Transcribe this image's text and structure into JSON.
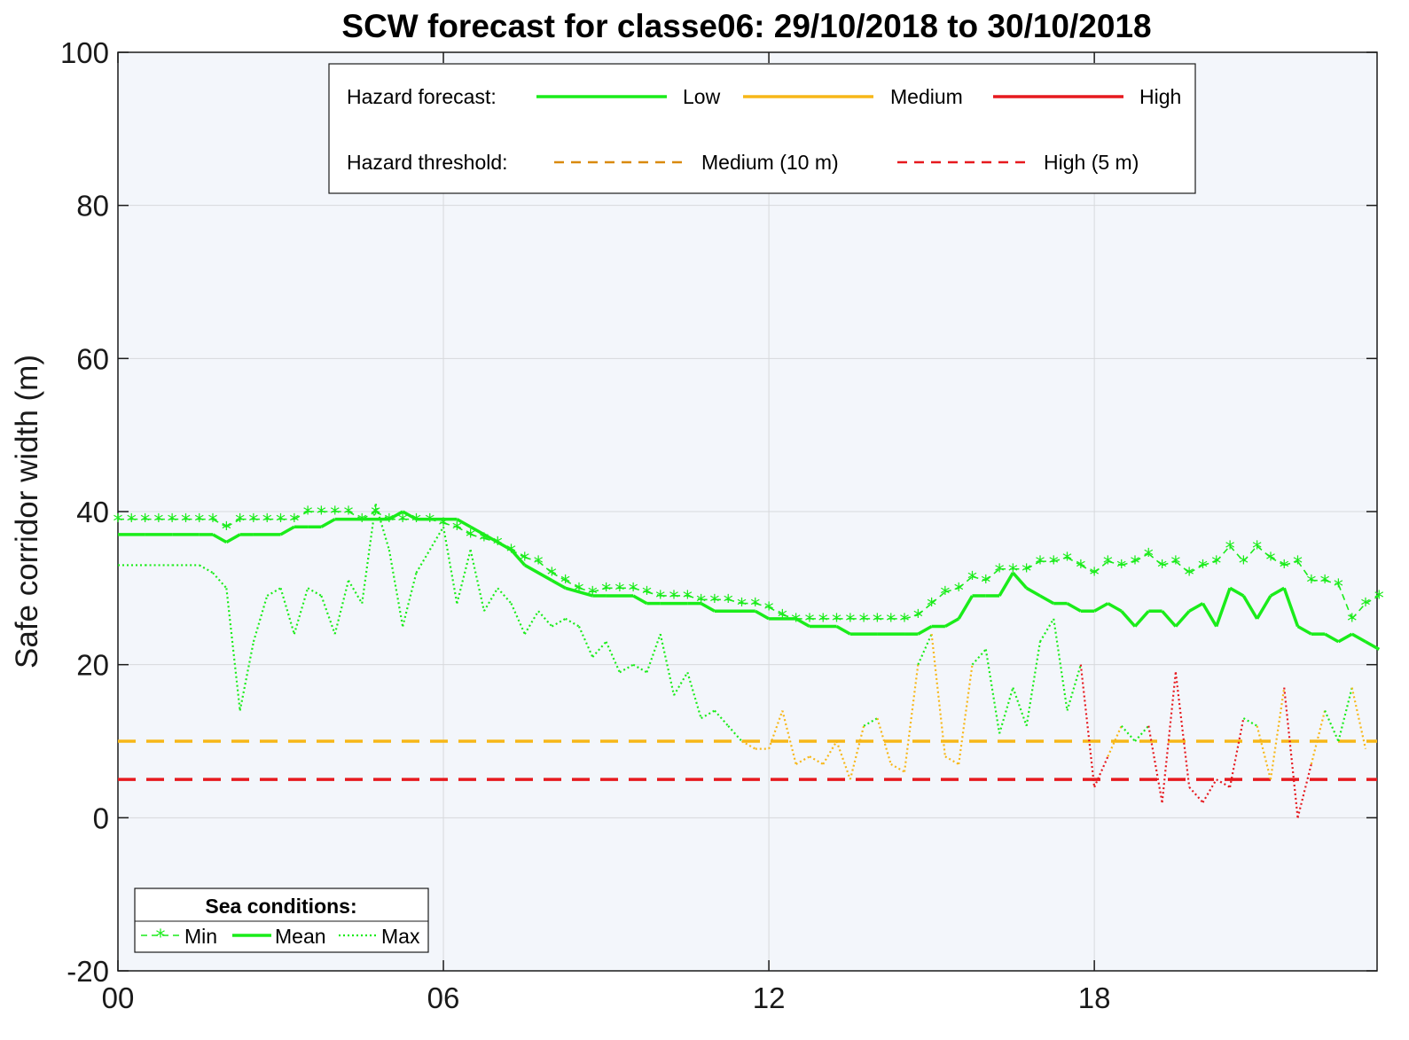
{
  "colors": {
    "background": "#f3f6fb",
    "grid": "#d7d9dc",
    "low": "#1aec1a",
    "medium": "#f7b718",
    "high": "#e6191e",
    "medium_threshold_legend": "#d98a0e"
  },
  "chart_data": {
    "type": "line",
    "title": "SCW forecast for classe06:  29/10/2018 to 30/10/2018",
    "ylabel": "Safe corridor width (m)",
    "xlabel": "",
    "xlim": [
      0,
      23
    ],
    "ylim": [
      -20,
      100
    ],
    "x_ticks": [
      {
        "value": 0,
        "label": "00"
      },
      {
        "value": 6,
        "label": "06"
      },
      {
        "value": 12,
        "label": "12"
      },
      {
        "value": 18,
        "label": "18"
      }
    ],
    "y_ticks": [
      {
        "value": -20,
        "label": "-20"
      },
      {
        "value": 0,
        "label": "0"
      },
      {
        "value": 20,
        "label": "20"
      },
      {
        "value": 40,
        "label": "40"
      },
      {
        "value": 60,
        "label": "60"
      },
      {
        "value": 80,
        "label": "80"
      },
      {
        "value": 100,
        "label": "100"
      }
    ],
    "grid": true,
    "thresholds": [
      {
        "name": "Medium (10 m)",
        "value": 10,
        "color": "#f7b718"
      },
      {
        "name": "High (5 m)",
        "value": 5,
        "color": "#e6191e"
      }
    ],
    "hazard_levels": {
      "medium_below": 10,
      "high_below": 5
    },
    "series": [
      {
        "name": "Min",
        "style": "dash-star",
        "points": [
          [
            0,
            39
          ],
          [
            0.25,
            39
          ],
          [
            0.5,
            39
          ],
          [
            0.75,
            39
          ],
          [
            1,
            39
          ],
          [
            1.25,
            39
          ],
          [
            1.5,
            39
          ],
          [
            1.75,
            39
          ],
          [
            2,
            38
          ],
          [
            2.25,
            39
          ],
          [
            2.5,
            39
          ],
          [
            2.75,
            39
          ],
          [
            3,
            39
          ],
          [
            3.25,
            39
          ],
          [
            3.5,
            40
          ],
          [
            3.75,
            40
          ],
          [
            4,
            40
          ],
          [
            4.25,
            40
          ],
          [
            4.5,
            39
          ],
          [
            4.75,
            40
          ],
          [
            5,
            39
          ],
          [
            5.25,
            39
          ],
          [
            5.5,
            39
          ],
          [
            5.75,
            39
          ],
          [
            6,
            38.5
          ],
          [
            6.25,
            38
          ],
          [
            6.5,
            37
          ],
          [
            6.75,
            36.5
          ],
          [
            7,
            36
          ],
          [
            7.25,
            35
          ],
          [
            7.5,
            34
          ],
          [
            7.75,
            33.5
          ],
          [
            8,
            32
          ],
          [
            8.25,
            31
          ],
          [
            8.5,
            30
          ],
          [
            8.75,
            29.5
          ],
          [
            9,
            30
          ],
          [
            9.25,
            30
          ],
          [
            9.5,
            30
          ],
          [
            9.75,
            29.5
          ],
          [
            10,
            29
          ],
          [
            10.25,
            29
          ],
          [
            10.5,
            29
          ],
          [
            10.75,
            28.5
          ],
          [
            11,
            28.5
          ],
          [
            11.25,
            28.5
          ],
          [
            11.5,
            28
          ],
          [
            11.75,
            28
          ],
          [
            12,
            27.5
          ],
          [
            12.25,
            26.5
          ],
          [
            12.5,
            26
          ],
          [
            12.75,
            26
          ],
          [
            13,
            26
          ],
          [
            13.25,
            26
          ],
          [
            13.5,
            26
          ],
          [
            13.75,
            26
          ],
          [
            14,
            26
          ],
          [
            14.25,
            26
          ],
          [
            14.5,
            26
          ],
          [
            14.75,
            26.5
          ],
          [
            15,
            28
          ],
          [
            15.25,
            29.5
          ],
          [
            15.5,
            30
          ],
          [
            15.75,
            31.5
          ],
          [
            16,
            31
          ],
          [
            16.25,
            32.5
          ],
          [
            16.5,
            32.5
          ],
          [
            16.75,
            32.5
          ],
          [
            17,
            33.5
          ],
          [
            17.25,
            33.5
          ],
          [
            17.5,
            34
          ],
          [
            17.75,
            33
          ],
          [
            18,
            32
          ],
          [
            18.25,
            33.5
          ],
          [
            18.5,
            33
          ],
          [
            18.75,
            33.5
          ],
          [
            19,
            34.5
          ],
          [
            19.25,
            33
          ],
          [
            19.5,
            33.5
          ],
          [
            19.75,
            32
          ],
          [
            20,
            33
          ],
          [
            20.25,
            33.5
          ],
          [
            20.5,
            35.5
          ],
          [
            20.75,
            33.5
          ],
          [
            21,
            35.5
          ],
          [
            21.25,
            34
          ],
          [
            21.5,
            33
          ],
          [
            21.75,
            33.5
          ],
          [
            22,
            31
          ],
          [
            22.25,
            31
          ],
          [
            22.5,
            30.5
          ],
          [
            22.75,
            26
          ],
          [
            23,
            28
          ],
          [
            23.25,
            29
          ]
        ]
      },
      {
        "name": "Mean",
        "style": "solid",
        "points": [
          [
            0,
            37
          ],
          [
            0.5,
            37
          ],
          [
            1,
            37
          ],
          [
            1.5,
            37
          ],
          [
            1.75,
            37
          ],
          [
            2,
            36
          ],
          [
            2.25,
            37
          ],
          [
            2.5,
            37
          ],
          [
            3,
            37
          ],
          [
            3.25,
            38
          ],
          [
            3.5,
            38
          ],
          [
            3.75,
            38
          ],
          [
            4,
            39
          ],
          [
            4.5,
            39
          ],
          [
            5,
            39
          ],
          [
            5.25,
            40
          ],
          [
            5.5,
            39
          ],
          [
            6,
            39
          ],
          [
            6.25,
            39
          ],
          [
            6.5,
            38
          ],
          [
            7,
            36
          ],
          [
            7.25,
            35
          ],
          [
            7.5,
            33
          ],
          [
            8,
            31
          ],
          [
            8.25,
            30
          ],
          [
            8.75,
            29
          ],
          [
            9,
            29
          ],
          [
            9.5,
            29
          ],
          [
            9.75,
            28
          ],
          [
            10,
            28
          ],
          [
            10.5,
            28
          ],
          [
            10.75,
            28
          ],
          [
            11,
            27
          ],
          [
            11.5,
            27
          ],
          [
            11.75,
            27
          ],
          [
            12,
            26
          ],
          [
            12.5,
            26
          ],
          [
            12.75,
            25
          ],
          [
            13.25,
            25
          ],
          [
            13.5,
            24
          ],
          [
            14,
            24
          ],
          [
            14.5,
            24
          ],
          [
            14.75,
            24
          ],
          [
            15,
            25
          ],
          [
            15.25,
            25
          ],
          [
            15.5,
            26
          ],
          [
            15.75,
            29
          ],
          [
            16,
            29
          ],
          [
            16.25,
            29
          ],
          [
            16.5,
            32
          ],
          [
            16.75,
            30
          ],
          [
            17,
            29
          ],
          [
            17.25,
            28
          ],
          [
            17.5,
            28
          ],
          [
            17.75,
            27
          ],
          [
            18,
            27
          ],
          [
            18.25,
            28
          ],
          [
            18.5,
            27
          ],
          [
            18.75,
            25
          ],
          [
            19,
            27
          ],
          [
            19.25,
            27
          ],
          [
            19.5,
            25
          ],
          [
            19.75,
            27
          ],
          [
            20,
            28
          ],
          [
            20.25,
            25
          ],
          [
            20.5,
            30
          ],
          [
            20.75,
            29
          ],
          [
            21,
            26
          ],
          [
            21.25,
            29
          ],
          [
            21.5,
            30
          ],
          [
            21.75,
            25
          ],
          [
            22,
            24
          ],
          [
            22.25,
            24
          ],
          [
            22.5,
            23
          ],
          [
            22.75,
            24
          ],
          [
            23,
            23
          ],
          [
            23.25,
            22
          ]
        ]
      },
      {
        "name": "Max",
        "style": "dotted",
        "points": [
          [
            0,
            33
          ],
          [
            0.5,
            33
          ],
          [
            1,
            33
          ],
          [
            1.5,
            33
          ],
          [
            1.75,
            32
          ],
          [
            2,
            30
          ],
          [
            2.25,
            14
          ],
          [
            2.5,
            23
          ],
          [
            2.75,
            29
          ],
          [
            3,
            30
          ],
          [
            3.25,
            24
          ],
          [
            3.5,
            30
          ],
          [
            3.75,
            29
          ],
          [
            4,
            24
          ],
          [
            4.25,
            31
          ],
          [
            4.5,
            28
          ],
          [
            4.75,
            41
          ],
          [
            5,
            35
          ],
          [
            5.25,
            25
          ],
          [
            5.5,
            32
          ],
          [
            5.75,
            35
          ],
          [
            6,
            38
          ],
          [
            6.25,
            28
          ],
          [
            6.5,
            35
          ],
          [
            6.75,
            27
          ],
          [
            7,
            30
          ],
          [
            7.25,
            28
          ],
          [
            7.5,
            24
          ],
          [
            7.75,
            27
          ],
          [
            8,
            25
          ],
          [
            8.25,
            26
          ],
          [
            8.5,
            25
          ],
          [
            8.75,
            21
          ],
          [
            9,
            23
          ],
          [
            9.25,
            19
          ],
          [
            9.5,
            20
          ],
          [
            9.75,
            19
          ],
          [
            10,
            24
          ],
          [
            10.25,
            16
          ],
          [
            10.5,
            19
          ],
          [
            10.75,
            13
          ],
          [
            11,
            14
          ],
          [
            11.25,
            12
          ],
          [
            11.5,
            10
          ],
          [
            11.75,
            9
          ],
          [
            12,
            9
          ],
          [
            12.25,
            14
          ],
          [
            12.5,
            7
          ],
          [
            12.75,
            8
          ],
          [
            13,
            7
          ],
          [
            13.25,
            10
          ],
          [
            13.5,
            5
          ],
          [
            13.75,
            12
          ],
          [
            14,
            13
          ],
          [
            14.25,
            7
          ],
          [
            14.5,
            6
          ],
          [
            14.75,
            20
          ],
          [
            15,
            24
          ],
          [
            15.25,
            8
          ],
          [
            15.5,
            7
          ],
          [
            15.75,
            20
          ],
          [
            16,
            22
          ],
          [
            16.25,
            11
          ],
          [
            16.5,
            17
          ],
          [
            16.75,
            12
          ],
          [
            17,
            23
          ],
          [
            17.25,
            26
          ],
          [
            17.5,
            14
          ],
          [
            17.75,
            20
          ],
          [
            18,
            4
          ],
          [
            18.25,
            8
          ],
          [
            18.5,
            12
          ],
          [
            18.75,
            10
          ],
          [
            19,
            12
          ],
          [
            19.25,
            2
          ],
          [
            19.5,
            19
          ],
          [
            19.75,
            4
          ],
          [
            20,
            2
          ],
          [
            20.25,
            5
          ],
          [
            20.5,
            4
          ],
          [
            20.75,
            13
          ],
          [
            21,
            12
          ],
          [
            21.25,
            5
          ],
          [
            21.5,
            17
          ],
          [
            21.75,
            0
          ],
          [
            22,
            7
          ],
          [
            22.25,
            14
          ],
          [
            22.5,
            10
          ],
          [
            22.75,
            17
          ],
          [
            23,
            9
          ]
        ]
      }
    ],
    "hazard_legend": {
      "forecast_label": "Hazard forecast:",
      "low_label": "Low",
      "medium_label": "Medium",
      "high_label": "High",
      "threshold_label": "Hazard threshold:",
      "medium_threshold_label": "Medium (10 m)",
      "high_threshold_label": "High (5 m)"
    },
    "sea_legend": {
      "title": "Sea conditions:",
      "min_label": "Min",
      "mean_label": "Mean",
      "max_label": "Max"
    }
  }
}
